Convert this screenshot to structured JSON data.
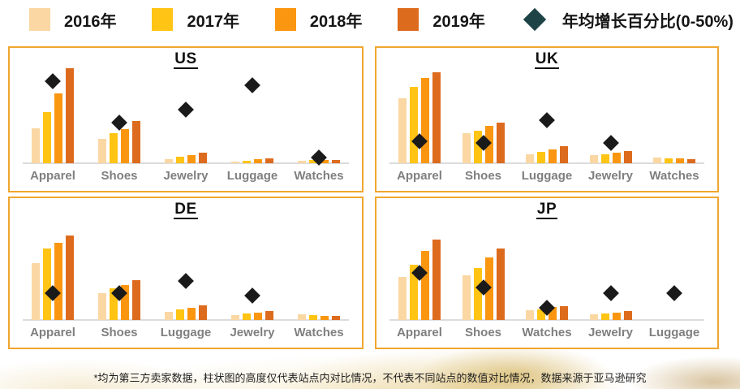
{
  "legend": {
    "years": [
      {
        "label": "2016年",
        "color": "#FAD7A3"
      },
      {
        "label": "2017年",
        "color": "#FFC414"
      },
      {
        "label": "2018年",
        "color": "#FA9610"
      },
      {
        "label": "2019年",
        "color": "#DD6B1E"
      }
    ],
    "diamond": {
      "label": "年均增长百分比(0-50%)",
      "color": "#1D4347"
    }
  },
  "colors": {
    "panel_border": "#F0A62F",
    "marker": "#1A1A1A",
    "axis_line": "#DCDCDC",
    "category_label": "#7F7F7F"
  },
  "footnote": "*均为第三方卖家数据，柱状图的高度仅代表站点内对比情况，不代表不同站点的数值对比情况，数据来源于亚马逊研究",
  "chart_data": [
    {
      "type": "bar",
      "title": "US",
      "categories": [
        "Apparel",
        "Shoes",
        "Jewelry",
        "Luggage",
        "Watches"
      ],
      "series": [
        {
          "name": "2016年",
          "values": [
            43,
            30,
            5,
            2,
            3
          ]
        },
        {
          "name": "2017年",
          "values": [
            63,
            37,
            8,
            3,
            4
          ]
        },
        {
          "name": "2018年",
          "values": [
            86,
            42,
            10,
            5,
            4
          ]
        },
        {
          "name": "2019年",
          "values": [
            117,
            52,
            13,
            6,
            4
          ]
        }
      ],
      "growth_pct": [
        41,
        21,
        27,
        39,
        4
      ],
      "growth_scale": [
        0,
        50
      ]
    },
    {
      "type": "bar",
      "title": "UK",
      "categories": [
        "Apparel",
        "Shoes",
        "Luggage",
        "Jewelry",
        "Watches"
      ],
      "series": [
        {
          "name": "2016年",
          "values": [
            80,
            37,
            11,
            10,
            7
          ]
        },
        {
          "name": "2017年",
          "values": [
            94,
            40,
            14,
            11,
            6
          ]
        },
        {
          "name": "2018年",
          "values": [
            105,
            46,
            17,
            13,
            6
          ]
        },
        {
          "name": "2019年",
          "values": [
            112,
            50,
            21,
            15,
            5
          ]
        }
      ],
      "growth_pct": [
        12,
        11,
        22,
        11,
        null
      ],
      "growth_scale": [
        0,
        50
      ]
    },
    {
      "type": "bar",
      "title": "DE",
      "categories": [
        "Apparel",
        "Shoes",
        "Luggage",
        "Jewelry",
        "Watches"
      ],
      "series": [
        {
          "name": "2016年",
          "values": [
            70,
            33,
            10,
            6,
            7
          ]
        },
        {
          "name": "2017年",
          "values": [
            88,
            39,
            13,
            8,
            6
          ]
        },
        {
          "name": "2018年",
          "values": [
            95,
            43,
            15,
            9,
            5
          ]
        },
        {
          "name": "2019年",
          "values": [
            104,
            49,
            18,
            11,
            5
          ]
        }
      ],
      "growth_pct": [
        14,
        14,
        20,
        13,
        null
      ],
      "growth_scale": [
        0,
        50
      ]
    },
    {
      "type": "bar",
      "title": "JP",
      "categories": [
        "Apparel",
        "Shoes",
        "Watches",
        "Jewelry",
        "Luggage"
      ],
      "series": [
        {
          "name": "2016年",
          "values": [
            53,
            55,
            12,
            7,
            0
          ]
        },
        {
          "name": "2017年",
          "values": [
            68,
            64,
            13,
            8,
            0
          ]
        },
        {
          "name": "2018年",
          "values": [
            85,
            77,
            16,
            9,
            0
          ]
        },
        {
          "name": "2019年",
          "values": [
            99,
            88,
            17,
            11,
            0
          ]
        }
      ],
      "growth_pct": [
        24,
        17,
        7,
        14,
        14
      ],
      "growth_scale": [
        0,
        50
      ]
    }
  ]
}
